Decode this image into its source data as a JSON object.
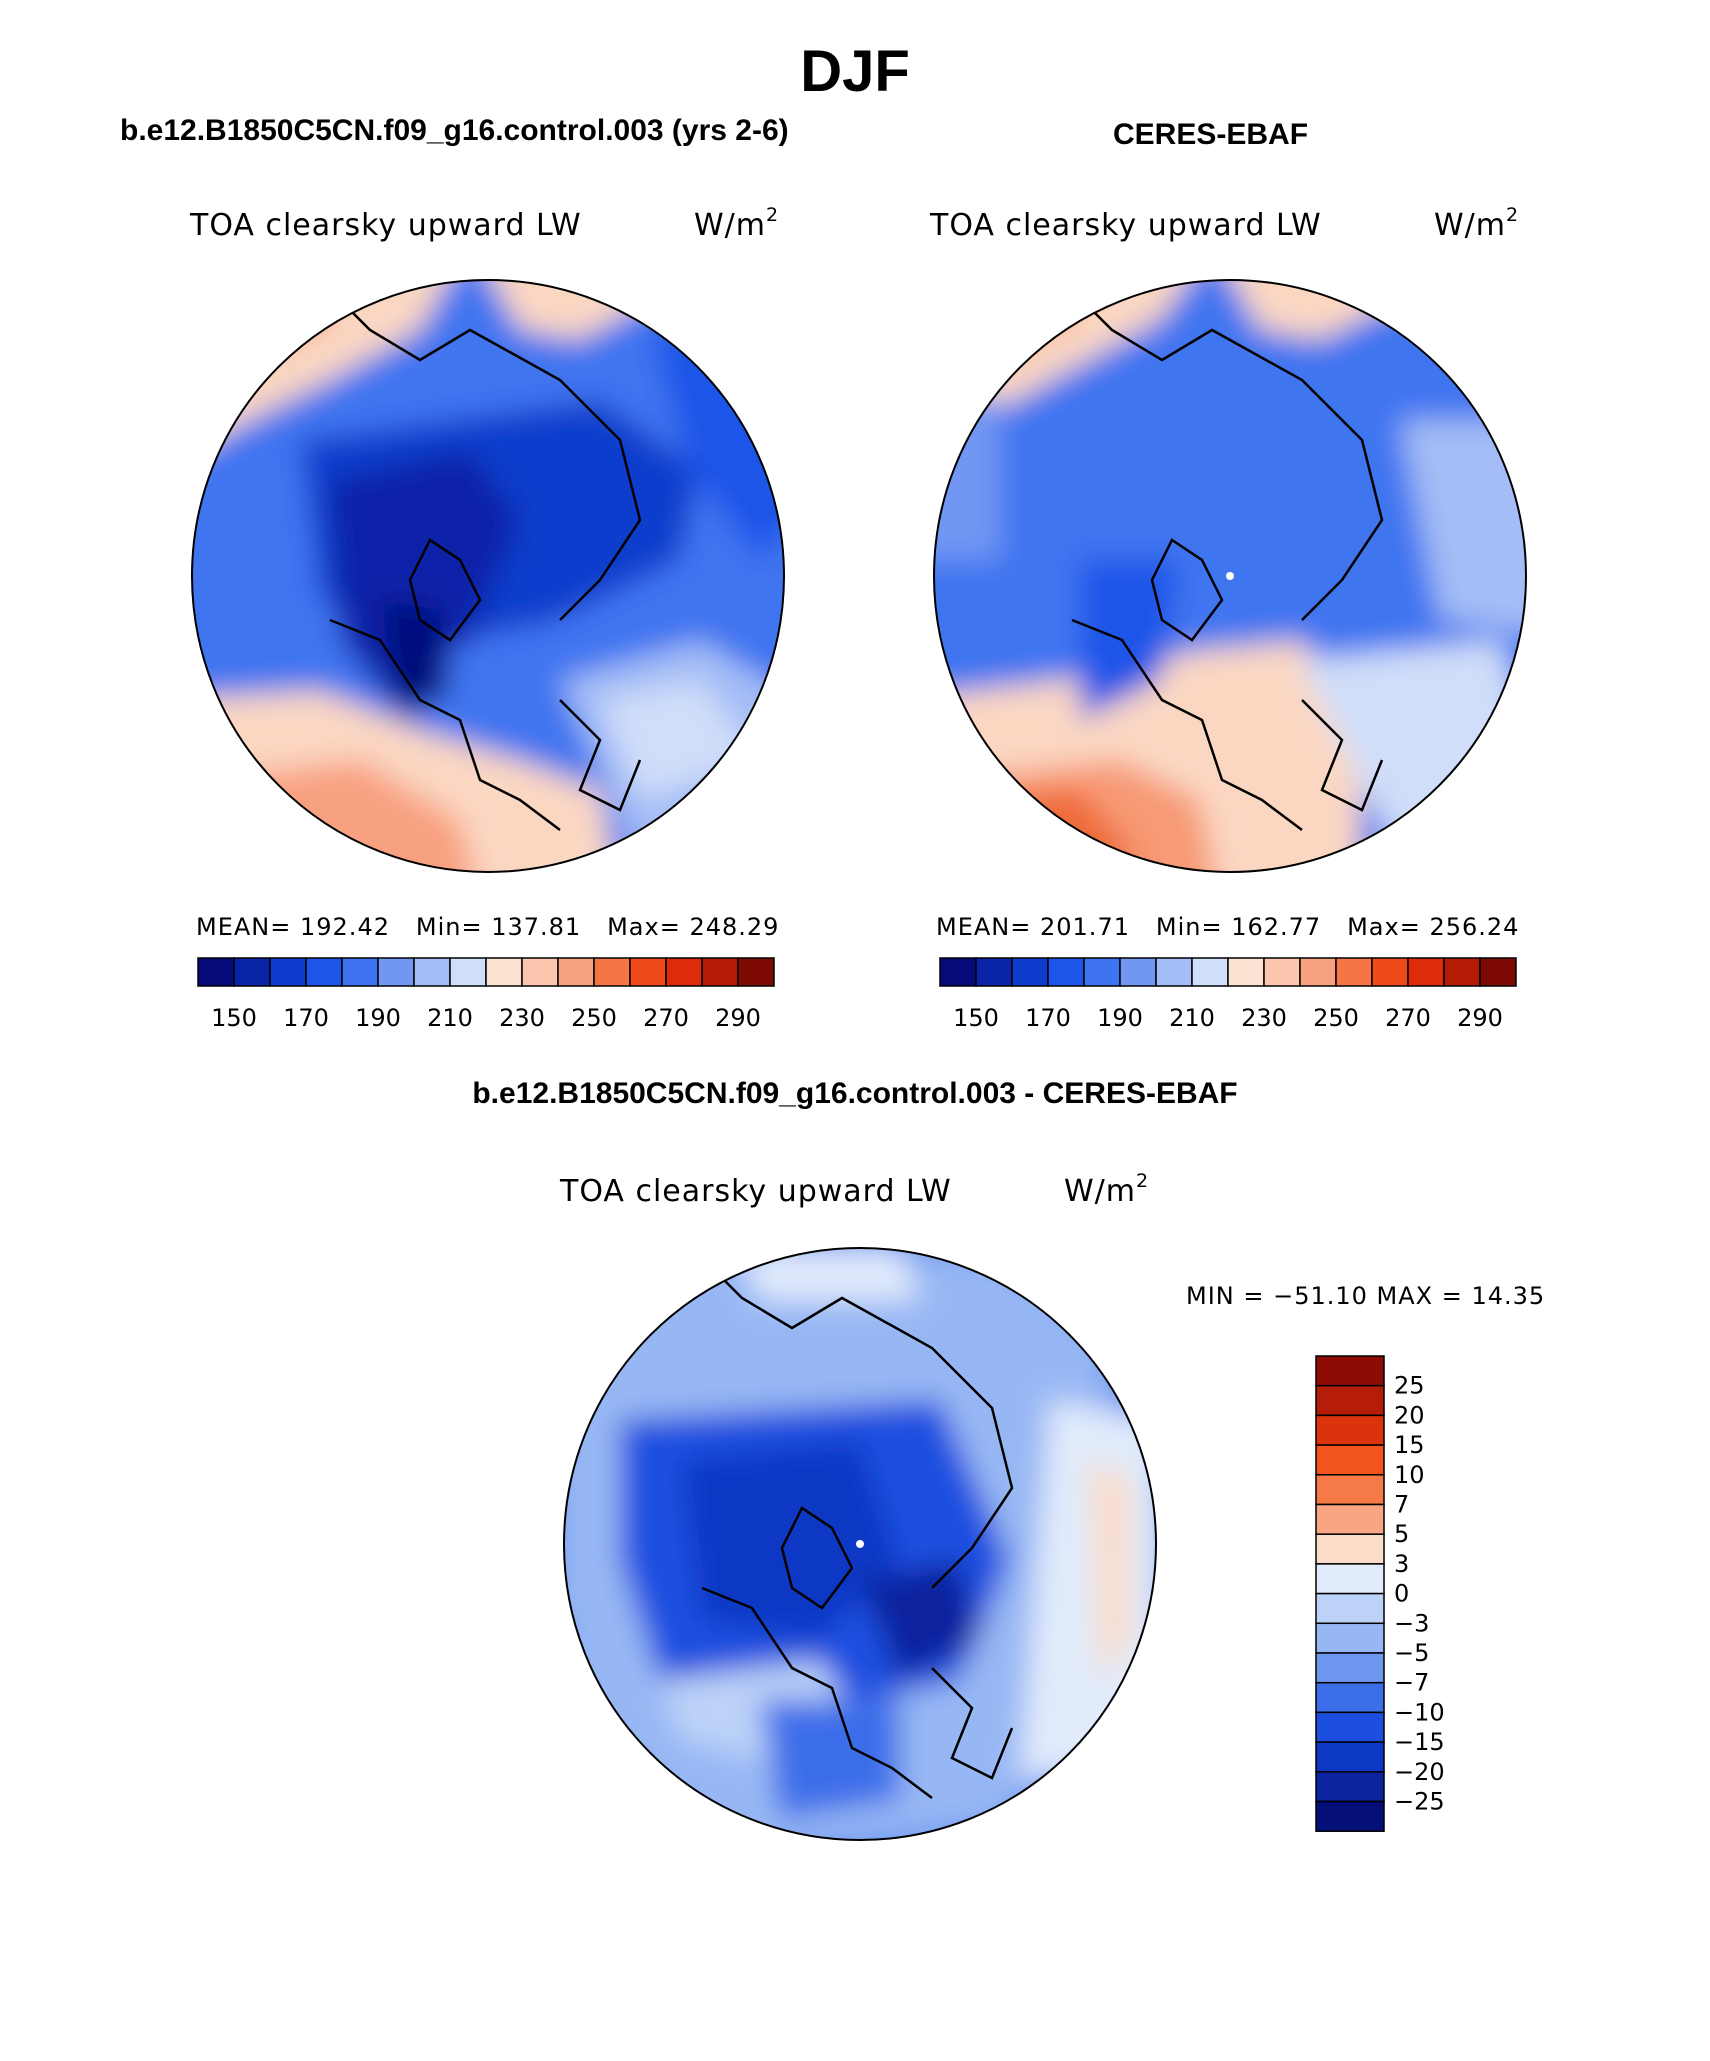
{
  "title": "DJF",
  "panels": [
    {
      "case": "b.e12.B1850C5CN.f09_g16.control.003 (yrs 2-6)",
      "variable": "TOA clearsky upward LW",
      "units_base": "W/m",
      "units_exp": "2",
      "mean_label": "MEAN=",
      "mean": "192.42",
      "min_label": "Min=",
      "min": "137.81",
      "max_label": "Max=",
      "max": "248.29"
    },
    {
      "case": "CERES-EBAF",
      "variable": "TOA clearsky upward LW",
      "units_base": "W/m",
      "units_exp": "2",
      "mean_label": "MEAN=",
      "mean": "201.71",
      "min_label": "Min=",
      "min": "162.77",
      "max_label": "Max=",
      "max": "256.24"
    }
  ],
  "diff": {
    "case": "b.e12.B1850C5CN.f09_g16.control.003 - CERES-EBAF",
    "variable": "TOA clearsky upward LW",
    "units_base": "W/m",
    "units_exp": "2",
    "minmax_text": "MIN = −51.10 MAX =   14.35"
  },
  "colorbar_horizontal": {
    "colors": [
      "#050a7a",
      "#0a24a8",
      "#0f3ccc",
      "#1c55e8",
      "#3f74f0",
      "#7197f3",
      "#a4bdf6",
      "#d0def9",
      "#fbe3d2",
      "#fbc6ad",
      "#f8a180",
      "#f47646",
      "#ef4a1a",
      "#dd2c0a",
      "#b31b05",
      "#7d0a02"
    ],
    "tick_labels": [
      "150",
      "170",
      "190",
      "210",
      "230",
      "250",
      "270",
      "290"
    ]
  },
  "colorbar_vertical": {
    "colors_top_to_bottom": [
      "#8e0a05",
      "#b51d08",
      "#db330c",
      "#f2541b",
      "#f57a47",
      "#f8a584",
      "#fbdcc8",
      "#e1ebfb",
      "#bcd2f8",
      "#97b7f4",
      "#6e98f0",
      "#3c6ee9",
      "#1c4fe0",
      "#0d38c4",
      "#0a239e",
      "#050f78"
    ],
    "tick_labels": [
      "25",
      "20",
      "15",
      "10",
      "7",
      "5",
      "3",
      "0",
      "−3",
      "−5",
      "−7",
      "−10",
      "−15",
      "−20",
      "−25"
    ]
  },
  "map_colors": {
    "deep_blue": "#0b2bb0",
    "mid_blue": "#2c5ee8",
    "light_blue": "#8caaf4",
    "pale_blue": "#cddcf9",
    "pale_orange": "#fbd7c2",
    "orange": "#f79a74",
    "dark_orange": "#ef6a38"
  }
}
